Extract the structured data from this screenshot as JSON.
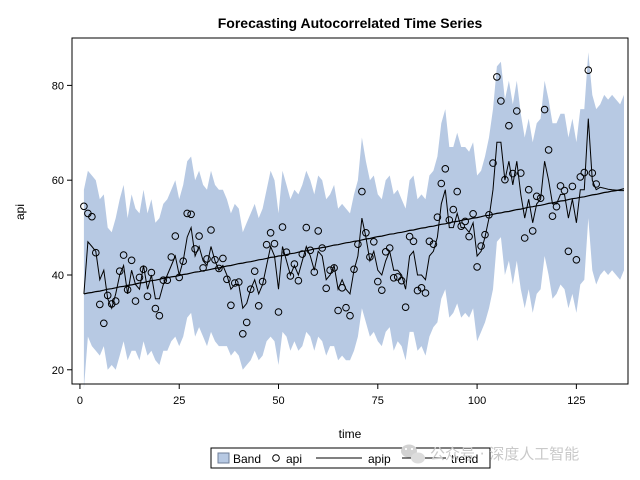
{
  "chart_data": {
    "type": "line",
    "title": "Forecasting Autocorrelated Time Series",
    "xlabel": "time",
    "ylabel": "api",
    "xlim": [
      -2,
      138
    ],
    "ylim": [
      17,
      90
    ],
    "xticks": [
      0,
      25,
      50,
      75,
      100,
      125
    ],
    "yticks": [
      20,
      40,
      60,
      80
    ],
    "grid": false,
    "legend_position": "bottom",
    "colors": {
      "band": "#b7c9e3",
      "band_edge": "#6f7f99",
      "api": "#000000",
      "apip": "#000000",
      "trend": "#000000"
    },
    "legend": [
      {
        "key": "band",
        "label": "Band",
        "symbol": "box"
      },
      {
        "key": "api",
        "label": "api",
        "symbol": "circle"
      },
      {
        "key": "apip",
        "label": "apip",
        "symbol": "line"
      },
      {
        "key": "trend",
        "label": "trend",
        "symbol": "line"
      }
    ],
    "x": [
      1,
      2,
      3,
      4,
      5,
      6,
      7,
      8,
      9,
      10,
      11,
      12,
      13,
      14,
      15,
      16,
      17,
      18,
      19,
      20,
      21,
      22,
      23,
      24,
      25,
      26,
      27,
      28,
      29,
      30,
      31,
      32,
      33,
      34,
      35,
      36,
      37,
      38,
      39,
      40,
      41,
      42,
      43,
      44,
      45,
      46,
      47,
      48,
      49,
      50,
      51,
      52,
      53,
      54,
      55,
      56,
      57,
      58,
      59,
      60,
      61,
      62,
      63,
      64,
      65,
      66,
      67,
      68,
      69,
      70,
      71,
      72,
      73,
      74,
      75,
      76,
      77,
      78,
      79,
      80,
      81,
      82,
      83,
      84,
      85,
      86,
      87,
      88,
      89,
      90,
      91,
      92,
      93,
      94,
      95,
      96,
      97,
      98,
      99,
      100,
      101,
      102,
      103,
      104,
      105,
      106,
      107,
      108,
      109,
      110,
      111,
      112,
      113,
      114,
      115,
      116,
      117,
      118,
      119,
      120,
      121,
      122,
      123,
      124,
      125,
      126,
      127,
      128,
      129,
      130,
      131,
      132,
      133,
      134,
      135,
      136,
      137
    ],
    "series": [
      {
        "name": "api",
        "kind": "scatter",
        "values": [
          54.5,
          53,
          52.3,
          44.7,
          33.8,
          29.8,
          35.7,
          33.9,
          34.5,
          40.8,
          44.2,
          36.9,
          43.1,
          34.5,
          39.5,
          41.2,
          35.5,
          40.5,
          32.9,
          31.4,
          38.9,
          38.9,
          43.8,
          48.2,
          39.5,
          42.9,
          53,
          52.8,
          45.5,
          48.2,
          41.5,
          43.4,
          49.5,
          43.2,
          41.4,
          43.5,
          39.1,
          33.6,
          38.3,
          38.5,
          27.6,
          30,
          37,
          40.8,
          33.5,
          38.6,
          46.4,
          48.9,
          46.6,
          32.2,
          50.1,
          44.8,
          39.8,
          42.3,
          38.8,
          44.4,
          50,
          45.2,
          40.6,
          49.3,
          45.7,
          37.2,
          41,
          41.5,
          32.5,
          37.3,
          33.1,
          31.4,
          41.2,
          46.5,
          57.6,
          48.9,
          43.8,
          47,
          38.6,
          36.8,
          44.9,
          45.7,
          39.4,
          39.6,
          38.8,
          33.2,
          48.1,
          47.1,
          36.7,
          37.3,
          36.2,
          47.1,
          46.5,
          52.2,
          59.3,
          62.4,
          51.6,
          53.8,
          57.6,
          50.3,
          51.3,
          48.1,
          52.9,
          41.7,
          46.1,
          48.5,
          52.7,
          63.6,
          81.8,
          76.7,
          60.1,
          71.5,
          61.4,
          74.6,
          61.5,
          47.8,
          58,
          49.3,
          56.6,
          56.2,
          74.9,
          66.4,
          52.4,
          54.4,
          58.8,
          57.8,
          45,
          58.7,
          43.2,
          60.7,
          61.6,
          83.2,
          61.5,
          59.2,
          null,
          null,
          null,
          null,
          null,
          null,
          null
        ]
      },
      {
        "name": "apip",
        "kind": "line",
        "values": [
          36,
          47,
          46,
          45,
          39,
          41,
          35,
          33,
          36,
          40,
          42,
          36,
          41,
          38,
          37,
          42,
          37,
          40,
          35,
          35,
          38,
          40,
          42,
          44,
          40,
          43,
          48,
          50,
          44,
          46,
          43,
          42,
          46,
          43,
          41,
          42,
          40,
          37,
          38,
          38,
          33,
          34,
          37,
          39,
          36,
          38,
          42,
          46,
          44,
          37,
          46,
          43,
          40,
          42,
          40,
          43,
          46,
          44,
          41,
          45,
          44,
          39,
          40,
          42,
          37,
          39,
          37,
          36,
          41,
          44,
          52,
          48,
          43,
          45,
          41,
          40,
          43,
          45,
          41,
          41,
          40,
          37,
          44,
          45,
          40,
          40,
          39,
          44,
          45,
          48,
          55,
          58,
          50,
          50,
          53,
          50,
          50,
          49,
          51,
          44,
          45,
          48,
          52,
          58,
          68,
          68,
          60,
          64,
          59,
          64,
          57,
          52,
          56,
          51,
          55,
          56,
          64,
          60,
          55,
          55,
          57,
          57,
          52,
          56,
          51,
          58,
          58,
          73,
          60,
          58,
          58.5,
          58.3,
          58.1,
          58,
          57.9,
          57.8,
          57.8
        ]
      },
      {
        "name": "trend",
        "kind": "line",
        "values": [
          36,
          36.2,
          36.3,
          36.5,
          36.6,
          36.8,
          37,
          37.1,
          37.3,
          37.5,
          37.6,
          37.8,
          37.9,
          38.1,
          38.3,
          38.4,
          38.6,
          38.8,
          38.9,
          39.1,
          39.3,
          39.4,
          39.6,
          39.7,
          39.9,
          40.1,
          40.2,
          40.4,
          40.6,
          40.7,
          40.9,
          41,
          41.2,
          41.4,
          41.5,
          41.7,
          41.9,
          42,
          42.2,
          42.4,
          42.5,
          42.7,
          42.8,
          43,
          43.2,
          43.3,
          43.5,
          43.7,
          43.8,
          44,
          44.1,
          44.3,
          44.5,
          44.6,
          44.8,
          45,
          45.1,
          45.3,
          45.5,
          45.6,
          45.8,
          45.9,
          46.1,
          46.3,
          46.4,
          46.6,
          46.8,
          46.9,
          47.1,
          47.2,
          47.4,
          47.6,
          47.7,
          47.9,
          48.1,
          48.2,
          48.4,
          48.6,
          48.7,
          48.9,
          49,
          49.2,
          49.4,
          49.5,
          49.7,
          49.9,
          50,
          50.2,
          50.3,
          50.5,
          50.7,
          50.8,
          51,
          51.2,
          51.3,
          51.5,
          51.7,
          51.8,
          52,
          52.1,
          52.3,
          52.5,
          52.6,
          52.8,
          53,
          53.1,
          53.3,
          53.4,
          53.6,
          53.8,
          53.9,
          54.1,
          54.3,
          54.4,
          54.6,
          54.7,
          54.9,
          55.1,
          55.2,
          55.4,
          55.6,
          55.7,
          55.9,
          56.1,
          56.2,
          56.4,
          56.5,
          56.7,
          56.9,
          57,
          57.2,
          57.4,
          57.5,
          57.7,
          57.8,
          58,
          58.2
        ]
      },
      {
        "name": "Band",
        "kind": "band",
        "lower": [
          16,
          27,
          25,
          24,
          23,
          25,
          20,
          21,
          20,
          23,
          26,
          22,
          24,
          24,
          22,
          26,
          23,
          24,
          22,
          21,
          24,
          24,
          26,
          27,
          25,
          27,
          31,
          32,
          27,
          29,
          27,
          25,
          28,
          26,
          25,
          25,
          25,
          23,
          24,
          23,
          20,
          21,
          22,
          24,
          22,
          23,
          26,
          27,
          26,
          21,
          28,
          27,
          24,
          26,
          24,
          25,
          28,
          27,
          24,
          27,
          26,
          23,
          25,
          25,
          22,
          23,
          22,
          22,
          24,
          27,
          33,
          30,
          27,
          28,
          26,
          25,
          28,
          29,
          24,
          26,
          25,
          22,
          28,
          28,
          24,
          25,
          23,
          27,
          29,
          30,
          35,
          37,
          31,
          32,
          34,
          31,
          32,
          31,
          33,
          26,
          28,
          30,
          33,
          37,
          47,
          48,
          40,
          43,
          38,
          43,
          37,
          33,
          37,
          32,
          36,
          37,
          44,
          40,
          35,
          36,
          38,
          37,
          33,
          36,
          32,
          38,
          39,
          52,
          41,
          38,
          40,
          41,
          40,
          41,
          40,
          39,
          41
        ],
        "upper": [
          58,
          62,
          61,
          60,
          56,
          57,
          50,
          49,
          52,
          56,
          59,
          52,
          57,
          54,
          53,
          58,
          53,
          56,
          51,
          52,
          55,
          56,
          58,
          60,
          56,
          59,
          64,
          65,
          60,
          62,
          59,
          58,
          62,
          59,
          58,
          58,
          56,
          53,
          55,
          54,
          49,
          51,
          53,
          55,
          52,
          54,
          58,
          62,
          60,
          53,
          62,
          59,
          56,
          58,
          57,
          59,
          62,
          60,
          57,
          61,
          60,
          56,
          57,
          59,
          54,
          55,
          54,
          53,
          57,
          60,
          69,
          64,
          60,
          61,
          57,
          56,
          60,
          61,
          57,
          58,
          56,
          54,
          60,
          61,
          56,
          57,
          56,
          61,
          62,
          65,
          72,
          75,
          67,
          67,
          70,
          67,
          67,
          66,
          68,
          61,
          62,
          65,
          69,
          75,
          84,
          85,
          77,
          81,
          76,
          81,
          74,
          69,
          73,
          68,
          72,
          73,
          81,
          77,
          72,
          72,
          74,
          74,
          69,
          73,
          68,
          75,
          75,
          87,
          78,
          75,
          76,
          78,
          77,
          78,
          77,
          76,
          78
        ]
      }
    ]
  },
  "watermark": {
    "icon": "wechat-logo-icon",
    "text": "公众号 · 深度人工智能"
  }
}
